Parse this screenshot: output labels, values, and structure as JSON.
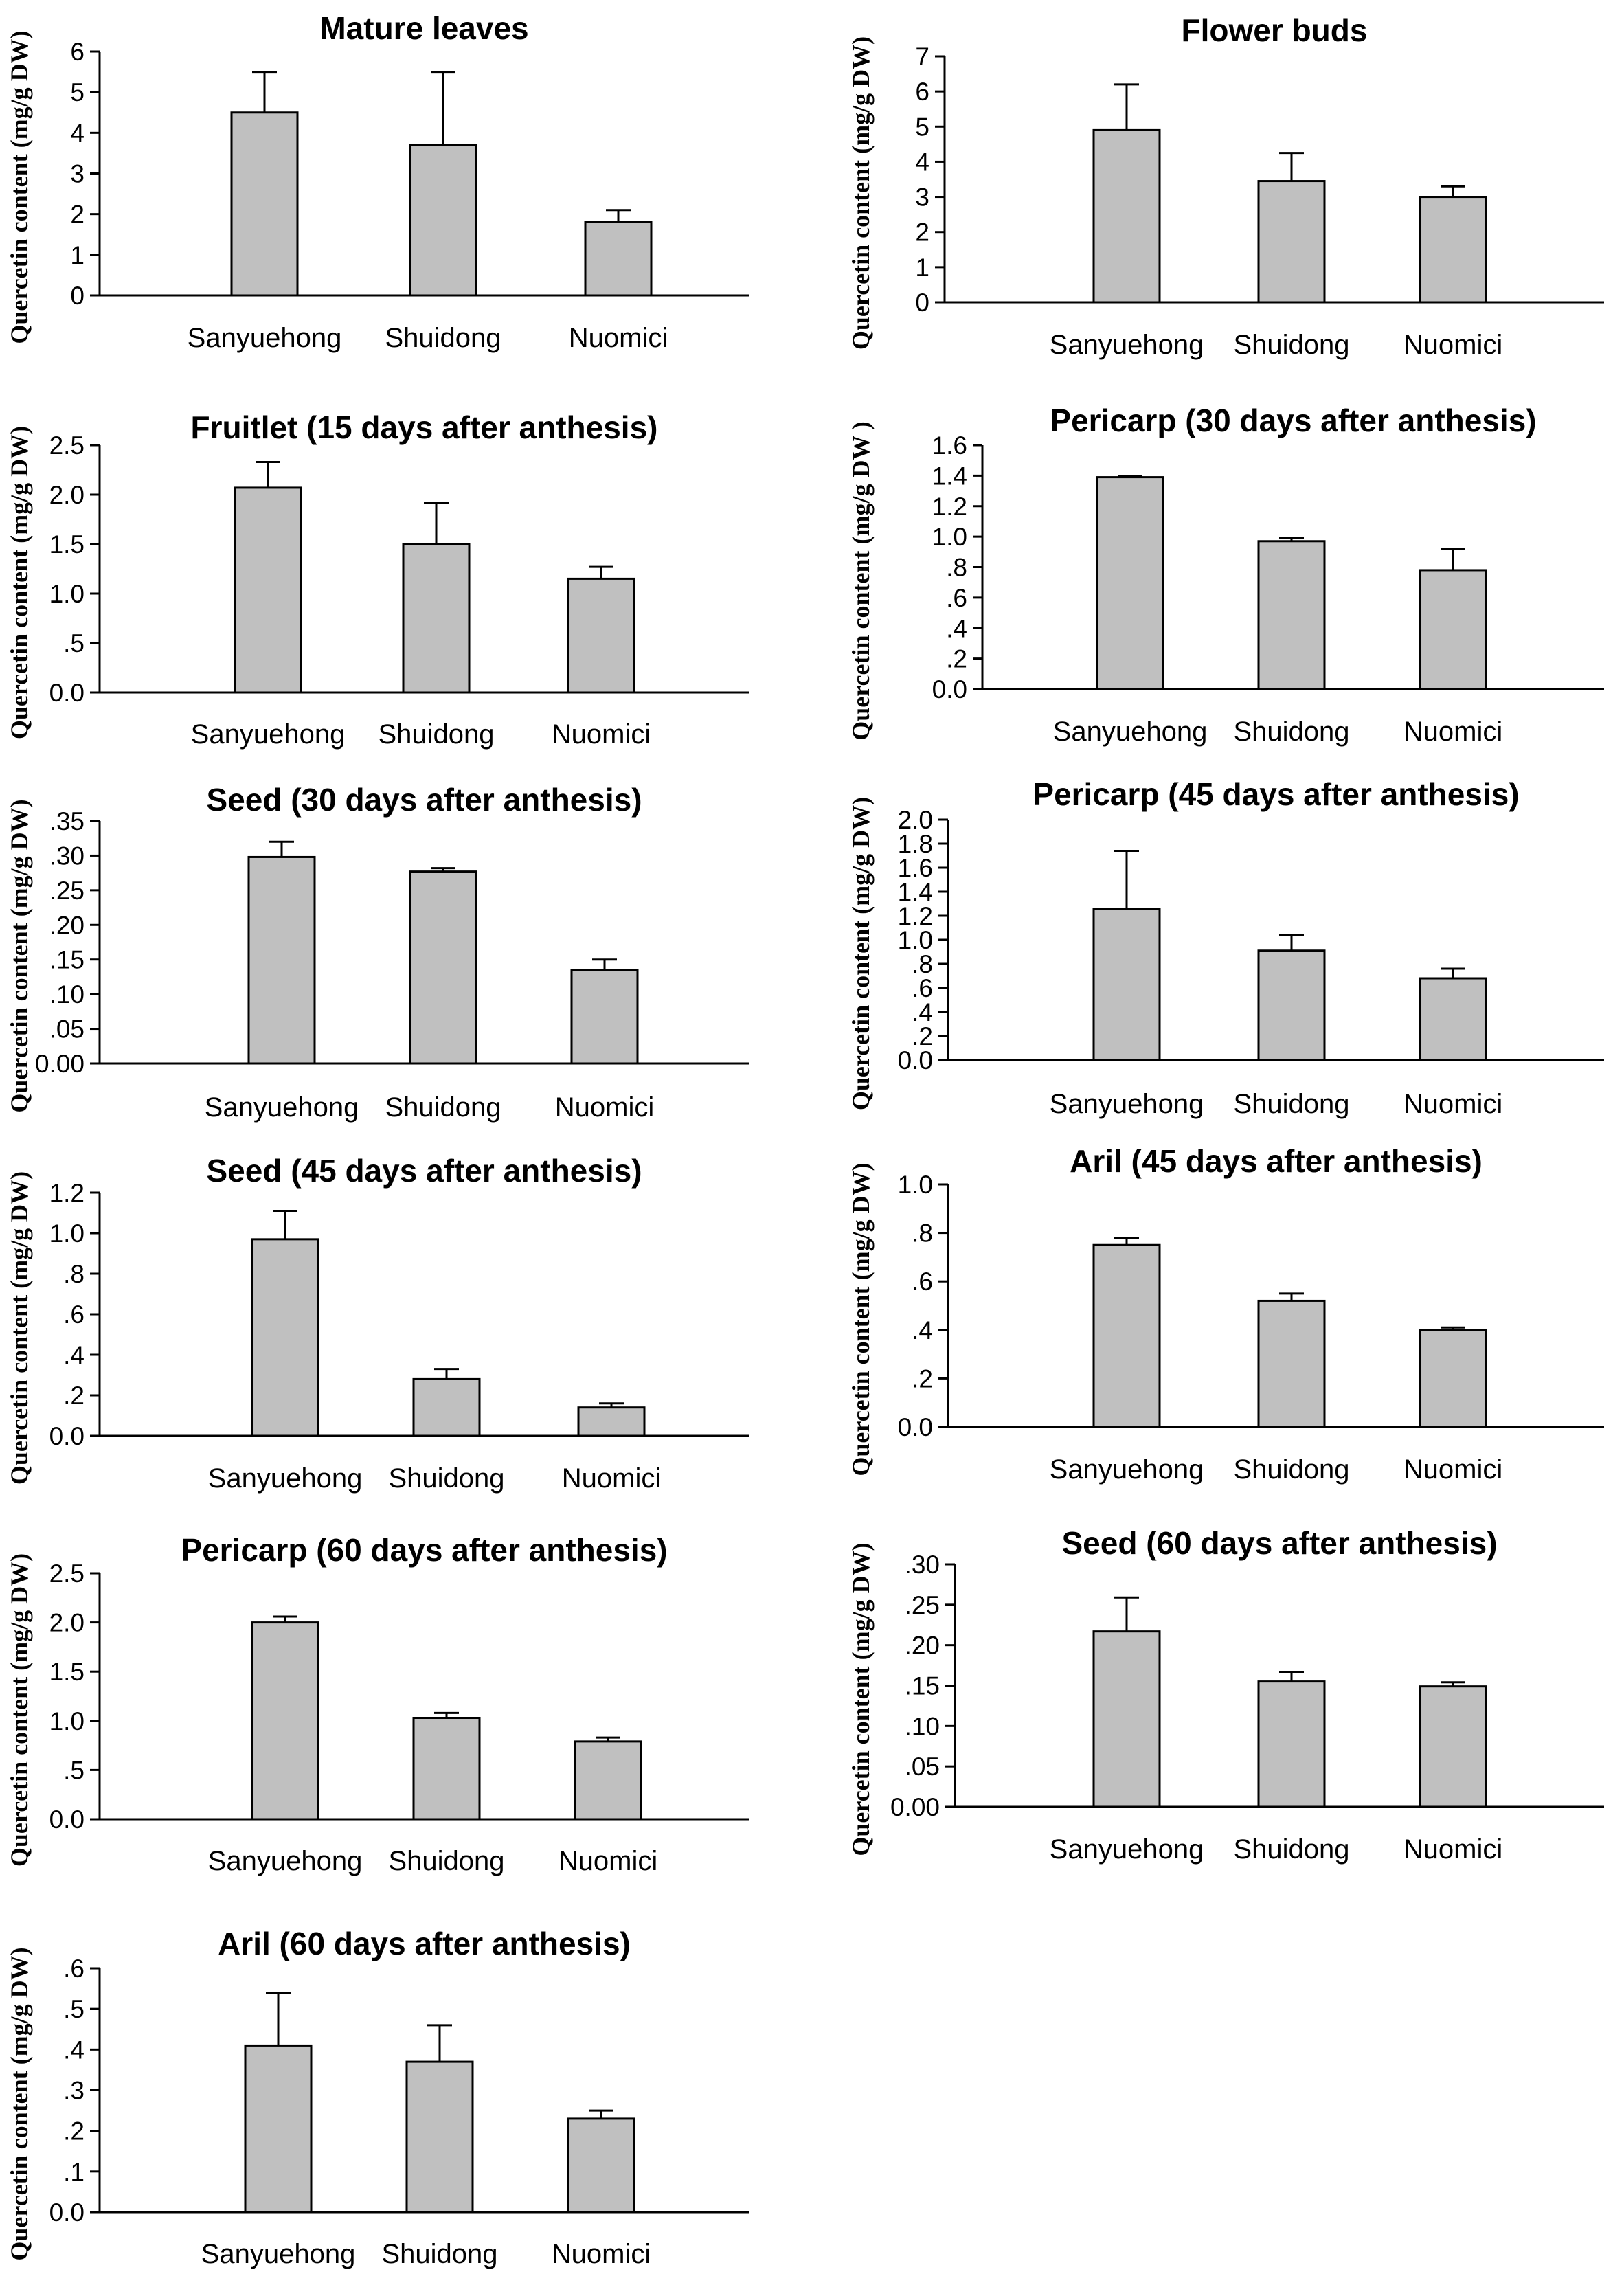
{
  "chart_data": [
    {
      "type": "bar",
      "title": "Mature leaves",
      "ylabel": "Quercetin content (mg/g DW)",
      "categories": [
        "Sanyuehong",
        "Shuidong",
        "Nuomici"
      ],
      "values": [
        4.5,
        3.7,
        1.8
      ],
      "errors": [
        1.0,
        1.8,
        0.3
      ],
      "ylim": [
        0,
        6
      ],
      "ticks": [
        0,
        1,
        2,
        3,
        4,
        5,
        6
      ],
      "tick_labels": [
        "0",
        "1",
        "2",
        "3",
        "4",
        "5",
        "6"
      ]
    },
    {
      "type": "bar",
      "title": "Flower buds",
      "ylabel": "Quercetin content (mg/g DW)",
      "categories": [
        "Sanyuehong",
        "Shuidong",
        "Nuomici"
      ],
      "values": [
        4.9,
        3.45,
        3.0
      ],
      "errors": [
        1.3,
        0.8,
        0.3
      ],
      "ylim": [
        0,
        7
      ],
      "ticks": [
        0,
        1,
        2,
        3,
        4,
        5,
        6,
        7
      ],
      "tick_labels": [
        "0",
        "1",
        "2",
        "3",
        "4",
        "5",
        "6",
        "7"
      ]
    },
    {
      "type": "bar",
      "title": "Fruitlet (15 days after anthesis)",
      "ylabel": "Quercetin content (mg/g DW)",
      "categories": [
        "Sanyuehong",
        "Shuidong",
        "Nuomici"
      ],
      "values": [
        2.07,
        1.5,
        1.15
      ],
      "errors": [
        0.26,
        0.42,
        0.12
      ],
      "ylim": [
        0,
        2.5
      ],
      "ticks": [
        0,
        0.5,
        1,
        1.5,
        2,
        2.5
      ],
      "tick_labels": [
        "0.0",
        ".5",
        "1.0",
        "1.5",
        "2.0",
        "2.5"
      ]
    },
    {
      "type": "bar",
      "title": "Pericarp (30 days after anthesis)",
      "ylabel": "Quercetin content (mg/g DW )",
      "categories": [
        "Sanyuehong",
        "Shuidong",
        "Nuomici"
      ],
      "values": [
        1.39,
        0.97,
        0.78
      ],
      "errors": [
        0.005,
        0.02,
        0.14
      ],
      "ylim": [
        0,
        1.6
      ],
      "ticks": [
        0,
        0.2,
        0.4,
        0.6,
        0.8,
        1.0,
        1.2,
        1.4,
        1.6
      ],
      "tick_labels": [
        "0.0",
        ".2",
        ".4",
        ".6",
        ".8",
        "1.0",
        "1.2",
        "1.4",
        "1.6"
      ]
    },
    {
      "type": "bar",
      "title": "Seed (30 days after anthesis)",
      "ylabel": "Quercetin content (mg/g DW)",
      "categories": [
        "Sanyuehong",
        "Shuidong",
        "Nuomici"
      ],
      "values": [
        0.298,
        0.277,
        0.135
      ],
      "errors": [
        0.022,
        0.005,
        0.015
      ],
      "ylim": [
        0,
        0.35
      ],
      "ticks": [
        0,
        0.05,
        0.1,
        0.15,
        0.2,
        0.25,
        0.3,
        0.35
      ],
      "tick_labels": [
        "0.00",
        ".05",
        ".10",
        ".15",
        ".20",
        ".25",
        ".30",
        ".35"
      ]
    },
    {
      "type": "bar",
      "title": "Pericarp (45 days after anthesis)",
      "ylabel": "Quercetin content (mg/g DW)",
      "categories": [
        "Sanyuehong",
        "Shuidong",
        "Nuomici"
      ],
      "values": [
        1.26,
        0.91,
        0.68
      ],
      "errors": [
        0.48,
        0.13,
        0.08
      ],
      "ylim": [
        0,
        2.0
      ],
      "ticks": [
        0,
        0.2,
        0.4,
        0.6,
        0.8,
        1.0,
        1.2,
        1.4,
        1.6,
        1.8,
        2.0
      ],
      "tick_labels": [
        "0.0",
        ".2",
        ".4",
        ".6",
        ".8",
        "1.0",
        "1.2",
        "1.4",
        "1.6",
        "1.8",
        "2.0"
      ]
    },
    {
      "type": "bar",
      "title": "Seed (45 days after anthesis)",
      "ylabel": "Quercetin content (mg/g DW)",
      "categories": [
        "Sanyuehong",
        "Shuidong",
        "Nuomici"
      ],
      "values": [
        0.97,
        0.28,
        0.14
      ],
      "errors": [
        0.14,
        0.05,
        0.02
      ],
      "ylim": [
        0,
        1.2
      ],
      "ticks": [
        0,
        0.2,
        0.4,
        0.6,
        0.8,
        1.0,
        1.2
      ],
      "tick_labels": [
        "0.0",
        ".2",
        ".4",
        ".6",
        ".8",
        "1.0",
        "1.2"
      ]
    },
    {
      "type": "bar",
      "title": "Aril (45 days after anthesis)",
      "ylabel": "Quercetin content (mg/g DW)",
      "categories": [
        "Sanyuehong",
        "Shuidong",
        "Nuomici"
      ],
      "values": [
        0.75,
        0.52,
        0.4
      ],
      "errors": [
        0.03,
        0.03,
        0.01
      ],
      "ylim": [
        0,
        1.0
      ],
      "ticks": [
        0,
        0.2,
        0.4,
        0.6,
        0.8,
        1.0
      ],
      "tick_labels": [
        "0.0",
        ".2",
        ".4",
        ".6",
        ".8",
        "1.0"
      ]
    },
    {
      "type": "bar",
      "title": "Pericarp (60 days after anthesis)",
      "ylabel": "Quercetin content (mg/g DW)",
      "categories": [
        "Sanyuehong",
        "Shuidong",
        "Nuomici"
      ],
      "values": [
        2.0,
        1.03,
        0.79
      ],
      "errors": [
        0.06,
        0.05,
        0.04
      ],
      "ylim": [
        0,
        2.5
      ],
      "ticks": [
        0,
        0.5,
        1,
        1.5,
        2,
        2.5
      ],
      "tick_labels": [
        "0.0",
        ".5",
        "1.0",
        "1.5",
        "2.0",
        "2.5"
      ]
    },
    {
      "type": "bar",
      "title": "Seed (60 days after anthesis)",
      "ylabel": "Quercetin content (mg/g DW)",
      "categories": [
        "Sanyuehong",
        "Shuidong",
        "Nuomici"
      ],
      "values": [
        0.217,
        0.155,
        0.149
      ],
      "errors": [
        0.042,
        0.012,
        0.005
      ],
      "ylim": [
        0,
        0.3
      ],
      "ticks": [
        0,
        0.05,
        0.1,
        0.15,
        0.2,
        0.25,
        0.3
      ],
      "tick_labels": [
        "0.00",
        ".05",
        ".10",
        ".15",
        ".20",
        ".25",
        ".30"
      ]
    },
    {
      "type": "bar",
      "title": "Aril (60 days after anthesis)",
      "ylabel": "Quercetin content (mg/g DW)",
      "categories": [
        "Sanyuehong",
        "Shuidong",
        "Nuomici"
      ],
      "values": [
        0.41,
        0.37,
        0.23
      ],
      "errors": [
        0.13,
        0.09,
        0.02
      ],
      "ylim": [
        0,
        0.6
      ],
      "ticks": [
        0,
        0.1,
        0.2,
        0.3,
        0.4,
        0.5,
        0.6
      ],
      "tick_labels": [
        "0.0",
        ".1",
        ".2",
        ".3",
        ".4",
        ".5",
        ".6"
      ]
    }
  ]
}
